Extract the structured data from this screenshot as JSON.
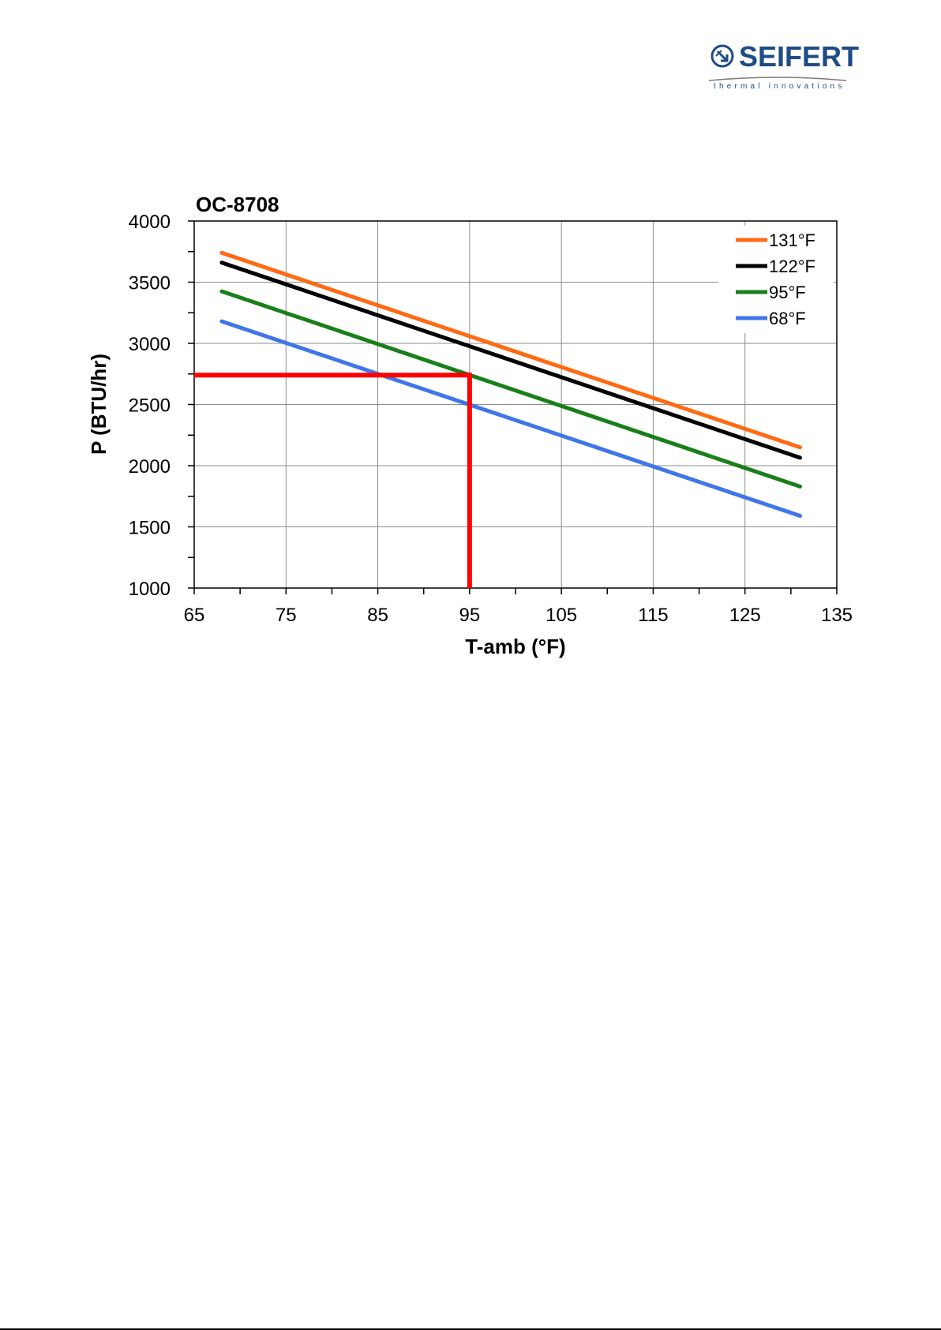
{
  "brand": {
    "name": "SEIFERT",
    "tagline": "thermal innovations",
    "color": "#1e4c85"
  },
  "chart_data": {
    "type": "line",
    "title": "OC-8708",
    "xlabel": "T-amb (°F)",
    "ylabel": "P (BTU/hr)",
    "xlim": [
      65,
      135
    ],
    "ylim": [
      1000,
      4000
    ],
    "xticks": [
      65,
      75,
      85,
      95,
      105,
      115,
      125,
      135
    ],
    "yticks": [
      1000,
      1500,
      2000,
      2500,
      3000,
      3500,
      4000
    ],
    "grid": true,
    "legend_position": "top-right",
    "series": [
      {
        "name": "131°F",
        "color": "#ff6a13",
        "x": [
          68,
          131
        ],
        "y": [
          3740,
          2150
        ]
      },
      {
        "name": "122°F",
        "color": "#000000",
        "x": [
          68,
          131
        ],
        "y": [
          3660,
          2065
        ]
      },
      {
        "name": "95°F",
        "color": "#1a7f1a",
        "x": [
          68,
          131
        ],
        "y": [
          3425,
          1830
        ]
      },
      {
        "name": "68°F",
        "color": "#3f76e8",
        "x": [
          68,
          131
        ],
        "y": [
          3180,
          1590
        ]
      }
    ],
    "marker": {
      "color": "#ff0000",
      "x": 95,
      "y": 2740
    }
  }
}
